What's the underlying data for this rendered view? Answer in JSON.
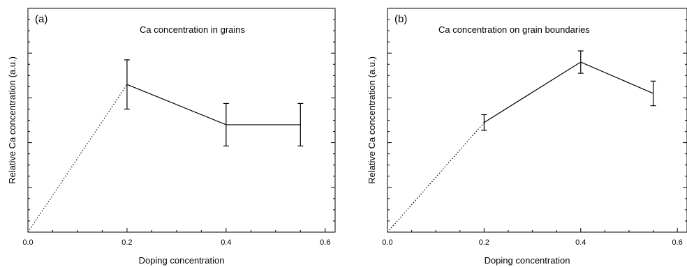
{
  "chart_data": [
    {
      "type": "line",
      "panel_label": "(a)",
      "title": "Ca concentration in grains",
      "xlabel": "Doping concentration",
      "ylabel": "Relative Ca concentration (a.u.)",
      "xlim": [
        0.0,
        0.62
      ],
      "ylim": [
        0,
        10
      ],
      "x_ticks": [
        "0.0",
        "0.2",
        "0.4",
        "0.6"
      ],
      "y_tick_labels_shown": false,
      "grid": false,
      "series": [
        {
          "x": [
            0.2,
            0.4,
            0.55
          ],
          "y": [
            6.6,
            4.8,
            4.8
          ],
          "yerr": [
            1.1,
            0.95,
            0.95
          ],
          "line": "solid"
        }
      ],
      "extrapolation": {
        "x": [
          0.0,
          0.2
        ],
        "y": [
          0,
          6.6
        ],
        "line": "dotted"
      }
    },
    {
      "type": "line",
      "panel_label": "(b)",
      "title": "Ca concentration on grain boundaries",
      "xlabel": "Doping concentration",
      "ylabel": "Relative Ca concentration (a.u.)",
      "xlim": [
        0.0,
        0.62
      ],
      "ylim": [
        0,
        10
      ],
      "x_ticks": [
        "0.0",
        "0.2",
        "0.4",
        "0.6"
      ],
      "y_tick_labels_shown": false,
      "grid": false,
      "series": [
        {
          "x": [
            0.2,
            0.4,
            0.55
          ],
          "y": [
            4.9,
            7.6,
            6.2
          ],
          "yerr": [
            0.35,
            0.5,
            0.55
          ],
          "line": "solid"
        }
      ],
      "extrapolation": {
        "x": [
          0.0,
          0.2
        ],
        "y": [
          0,
          4.9
        ],
        "line": "dotted"
      }
    }
  ]
}
